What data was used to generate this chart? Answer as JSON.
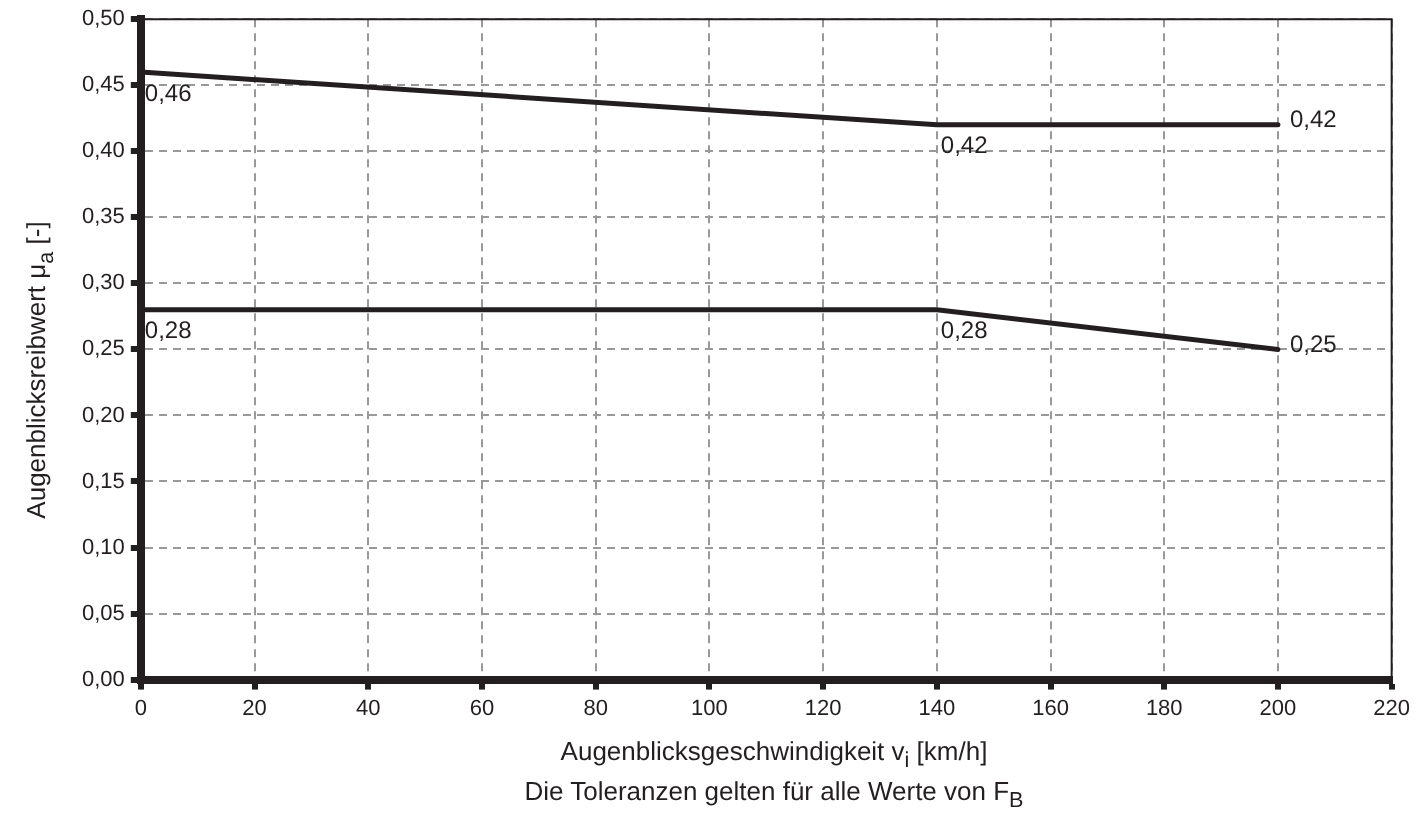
{
  "chart_data": {
    "type": "line",
    "xlabel": "Augenblicksgeschwindigkeit v$_{i}$ [km/h]",
    "ylabel": "Augenblicksreibwert μ$_{a}$ [-]",
    "annotations": [
      "Die Toleranzen gelten für alle Werte von F$_{B}$"
    ],
    "series": [
      {
        "color": "#231f20",
        "x": [
          0,
          140,
          200
        ],
        "values": [
          0.46,
          0.42,
          0.42
        ],
        "value_labels": [
          "0,46",
          "0,42",
          "0,42"
        ]
      },
      {
        "color": "#231f20",
        "x": [
          0,
          140,
          200
        ],
        "values": [
          0.28,
          0.28,
          0.25
        ],
        "value_labels": [
          "0,28",
          "0,28",
          "0,25"
        ]
      }
    ],
    "xlim": [
      0,
      220
    ],
    "xticks": [
      0,
      20,
      40,
      60,
      80,
      100,
      120,
      140,
      160,
      180,
      200,
      220
    ],
    "ylim": [
      0,
      0.5
    ],
    "yticks": [
      {
        "value": 0,
        "label": "0,00"
      },
      {
        "value": 0.05,
        "label": "0,05"
      },
      {
        "value": 0.1,
        "label": "0,10"
      },
      {
        "value": 0.15,
        "label": "0,15"
      },
      {
        "value": 0.2,
        "label": "0,20"
      },
      {
        "value": 0.25,
        "label": "0,25"
      },
      {
        "value": 0.3,
        "label": "0,30"
      },
      {
        "value": 0.35,
        "label": "0,35"
      },
      {
        "value": 0.4,
        "label": "0,40"
      },
      {
        "value": 0.45,
        "label": "0,45"
      },
      {
        "value": 0.5,
        "label": "0,50"
      }
    ],
    "grid": true,
    "legend": false,
    "marker": "none",
    "line_style": "solid"
  }
}
